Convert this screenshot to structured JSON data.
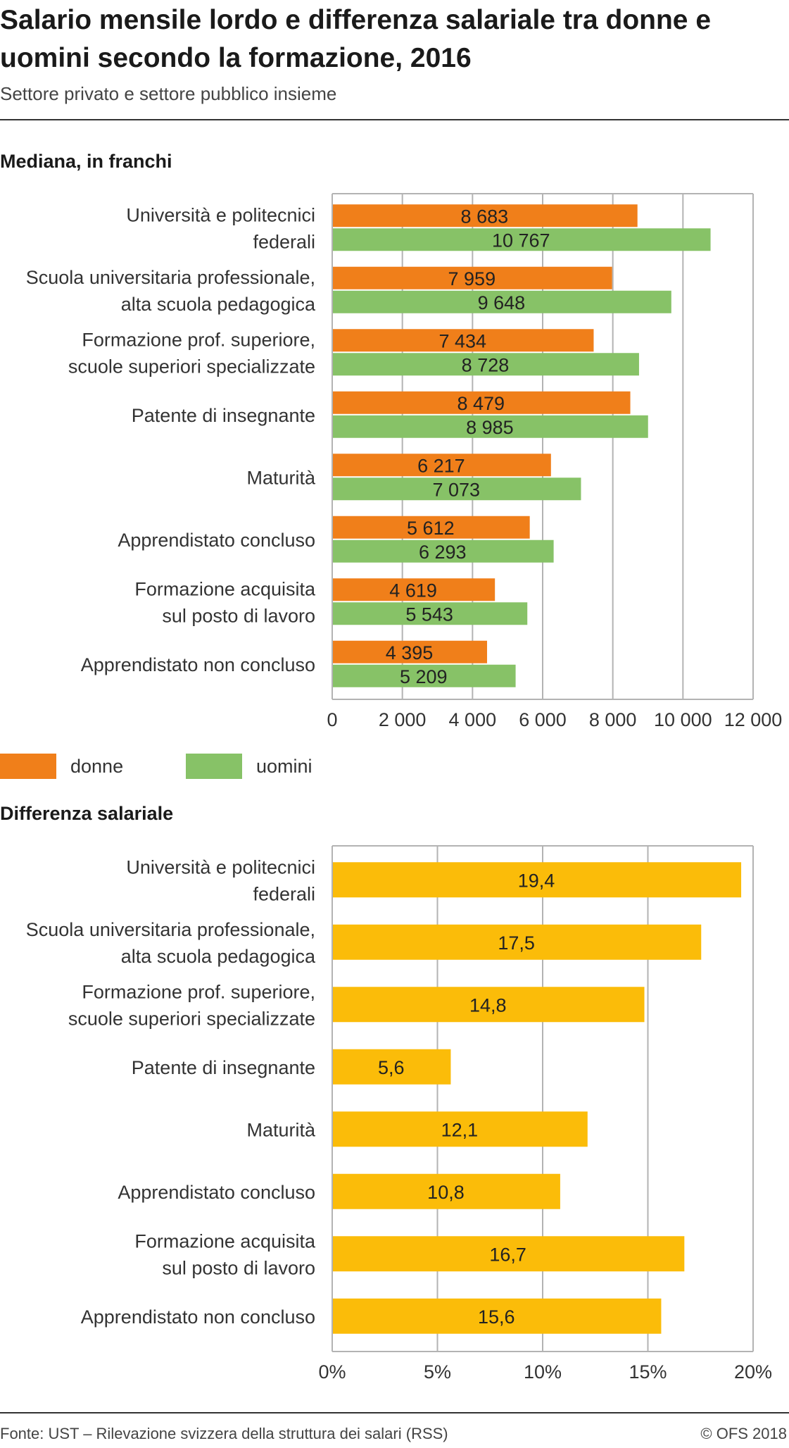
{
  "header": {
    "title": "Salario mensile lordo e differenza salariale tra donne e uomini secondo la formazione, 2016",
    "subtitle": "Settore privato e settore pubblico insieme"
  },
  "colors": {
    "donne": "#f07f1a",
    "uomini": "#87c267",
    "difference": "#fbbc09",
    "grid": "#b3b3b3",
    "plot_bg": "#ffffff"
  },
  "legend": {
    "donne": "donne",
    "uomini": "uomini"
  },
  "footer": {
    "source": "Fonte: UST – Rilevazione svizzera della struttura dei salari (RSS)",
    "copyright": "© OFS 2018"
  },
  "chart_data": [
    {
      "type": "bar",
      "orientation": "horizontal",
      "title": "Mediana, in franchi",
      "categories": [
        "Università e politecnici\nfederali",
        "Scuola universitaria professionale,\nalta scuola pedagogica",
        "Formazione prof. superiore,\nscuole superiori specializzate",
        "Patente di insegnante",
        "Maturità",
        "Apprendistato concluso",
        "Formazione acquisita\nsul posto di lavoro",
        "Apprendistato non concluso"
      ],
      "series": [
        {
          "name": "donne",
          "values": [
            8683,
            7959,
            7434,
            8479,
            6217,
            5612,
            4619,
            4395
          ],
          "labels": [
            "8 683",
            "7 959",
            "7 434",
            "8 479",
            "6 217",
            "5 612",
            "4 619",
            "4 395"
          ]
        },
        {
          "name": "uomini",
          "values": [
            10767,
            9648,
            8728,
            8985,
            7073,
            6293,
            5543,
            5209
          ],
          "labels": [
            "10 767",
            "9 648",
            "8 728",
            "8 985",
            "7 073",
            "6 293",
            "5 543",
            "5 209"
          ]
        }
      ],
      "xlim": [
        0,
        12000
      ],
      "xticks": [
        0,
        2000,
        4000,
        6000,
        8000,
        10000,
        12000
      ],
      "xtick_labels": [
        "0",
        "2 000",
        "4 000",
        "6 000",
        "8 000",
        "10 000",
        "12 000"
      ],
      "grid": true,
      "legend_position": "bottom-left"
    },
    {
      "type": "bar",
      "orientation": "horizontal",
      "title": "Differenza salariale",
      "categories": [
        "Università e politecnici\nfederali",
        "Scuola universitaria professionale,\nalta scuola pedagogica",
        "Formazione prof. superiore,\nscuole superiori specializzate",
        "Patente di insegnante",
        "Maturità",
        "Apprendistato concluso",
        "Formazione acquisita\nsul posto di lavoro",
        "Apprendistato non concluso"
      ],
      "values": [
        19.4,
        17.5,
        14.8,
        5.6,
        12.1,
        10.8,
        16.7,
        15.6
      ],
      "labels": [
        "19,4",
        "17,5",
        "14,8",
        "5,6",
        "12,1",
        "10,8",
        "16,7",
        "15,6"
      ],
      "xlim": [
        0,
        20
      ],
      "xticks": [
        0,
        5,
        10,
        15,
        20
      ],
      "xtick_labels": [
        "0%",
        "5%",
        "10%",
        "15%",
        "20%"
      ],
      "grid": true
    }
  ]
}
